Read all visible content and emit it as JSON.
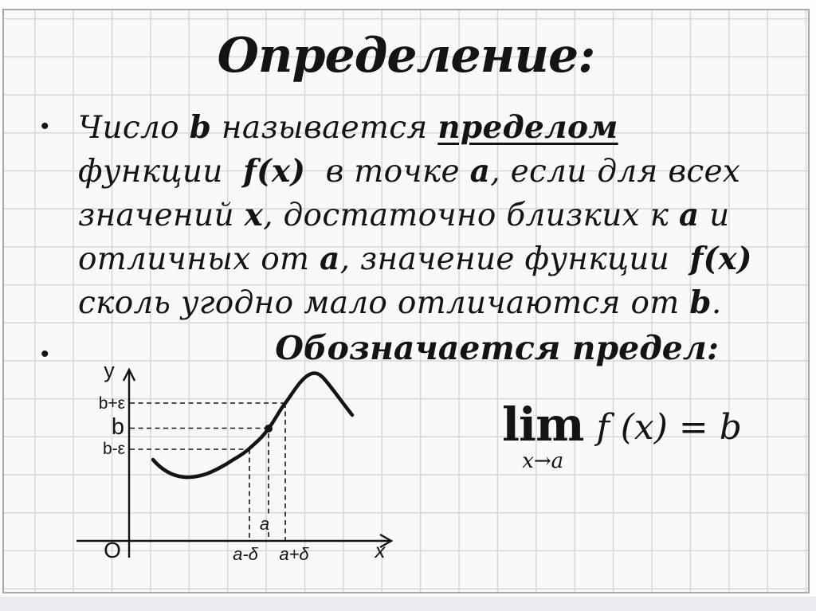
{
  "slide": {
    "title": "Определение:",
    "bullet_glyph": "•",
    "definition": {
      "lines": [
        {
          "segments": [
            {
              "t": "Число ",
              "s": "n"
            },
            {
              "t": "b",
              "s": "b"
            },
            {
              "t": " называется ",
              "s": "n"
            },
            {
              "t": "пределом",
              "s": "bu"
            }
          ]
        },
        {
          "segments": [
            {
              "t": "функции  ",
              "s": "n"
            },
            {
              "t": "f(x)",
              "s": "b"
            },
            {
              "t": "  в точке ",
              "s": "n"
            },
            {
              "t": "a",
              "s": "b"
            },
            {
              "t": ", если для всех",
              "s": "n"
            }
          ]
        },
        {
          "segments": [
            {
              "t": "значений ",
              "s": "n"
            },
            {
              "t": "x",
              "s": "b"
            },
            {
              "t": ", достаточно близких к ",
              "s": "n"
            },
            {
              "t": "a",
              "s": "b"
            },
            {
              "t": " и",
              "s": "n"
            }
          ]
        },
        {
          "segments": [
            {
              "t": "отличных от ",
              "s": "n"
            },
            {
              "t": "a",
              "s": "b"
            },
            {
              "t": ", значение функции  ",
              "s": "n"
            },
            {
              "t": "f(x)",
              "s": "b"
            }
          ]
        },
        {
          "segments": [
            {
              "t": "сколь угодно мало отличаются от ",
              "s": "n"
            },
            {
              "t": "b",
              "s": "b"
            },
            {
              "t": ".",
              "s": "n"
            }
          ]
        }
      ]
    },
    "denote_label": "Обозначается предел:",
    "formula": {
      "lim": "lim",
      "subscript": "x→a",
      "expression": "f (x) = b"
    },
    "graph": {
      "labels": {
        "y_axis": "y",
        "x_axis": "x",
        "origin": "O",
        "b_plus_eps": "b+ε",
        "b": "b",
        "b_minus_eps": "b-ε",
        "a": "a",
        "a_minus_delta": "a-δ",
        "a_plus_delta": "a+δ"
      }
    },
    "colors": {
      "text": "#141414",
      "grid_line": "#d7d7da",
      "paper_background": "#f9f9f8",
      "frame_border": "#a9a9ad"
    }
  }
}
